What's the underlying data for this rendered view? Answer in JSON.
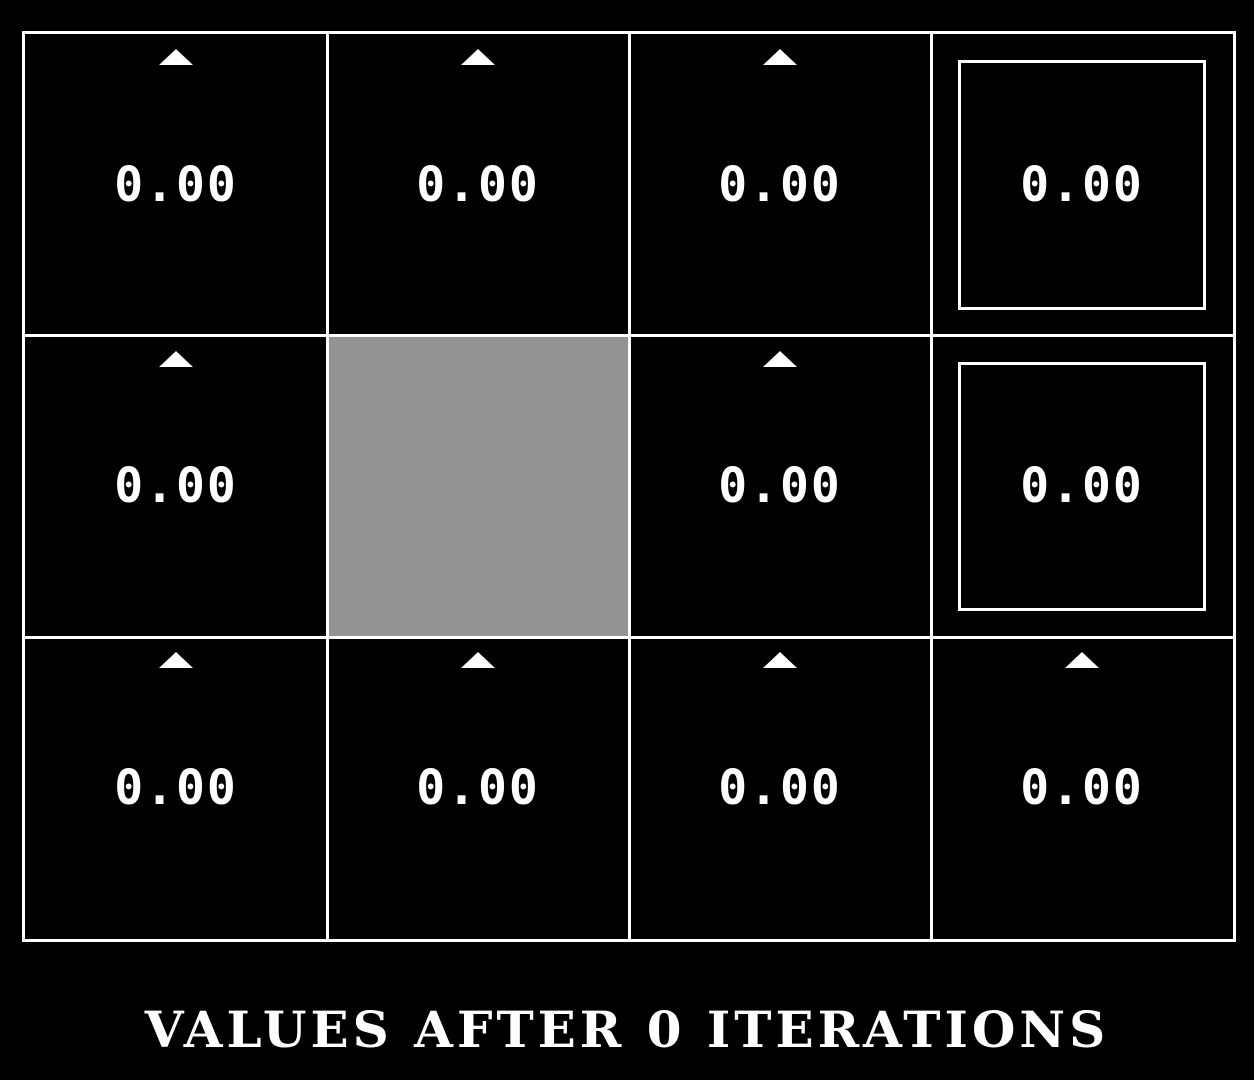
{
  "grid": {
    "rows": 3,
    "cols": 4,
    "cells": [
      {
        "row": 0,
        "col": 0,
        "type": "state",
        "value": "0.00",
        "policy": "up"
      },
      {
        "row": 0,
        "col": 1,
        "type": "state",
        "value": "0.00",
        "policy": "up"
      },
      {
        "row": 0,
        "col": 2,
        "type": "state",
        "value": "0.00",
        "policy": "up"
      },
      {
        "row": 0,
        "col": 3,
        "type": "terminal",
        "value": "0.00",
        "policy": ""
      },
      {
        "row": 1,
        "col": 0,
        "type": "state",
        "value": "0.00",
        "policy": "up"
      },
      {
        "row": 1,
        "col": 1,
        "type": "wall",
        "value": "",
        "policy": ""
      },
      {
        "row": 1,
        "col": 2,
        "type": "state",
        "value": "0.00",
        "policy": "up"
      },
      {
        "row": 1,
        "col": 3,
        "type": "terminal",
        "value": "0.00",
        "policy": ""
      },
      {
        "row": 2,
        "col": 0,
        "type": "state",
        "value": "0.00",
        "policy": "up"
      },
      {
        "row": 2,
        "col": 1,
        "type": "state",
        "value": "0.00",
        "policy": "up"
      },
      {
        "row": 2,
        "col": 2,
        "type": "state",
        "value": "0.00",
        "policy": "up"
      },
      {
        "row": 2,
        "col": 3,
        "type": "state",
        "value": "0.00",
        "policy": "up"
      }
    ]
  },
  "caption": "VALUES AFTER 0 ITERATIONS",
  "colors": {
    "background": "#000000",
    "grid_lines": "#ffffff",
    "wall": "#939393",
    "text": "#ffffff"
  }
}
